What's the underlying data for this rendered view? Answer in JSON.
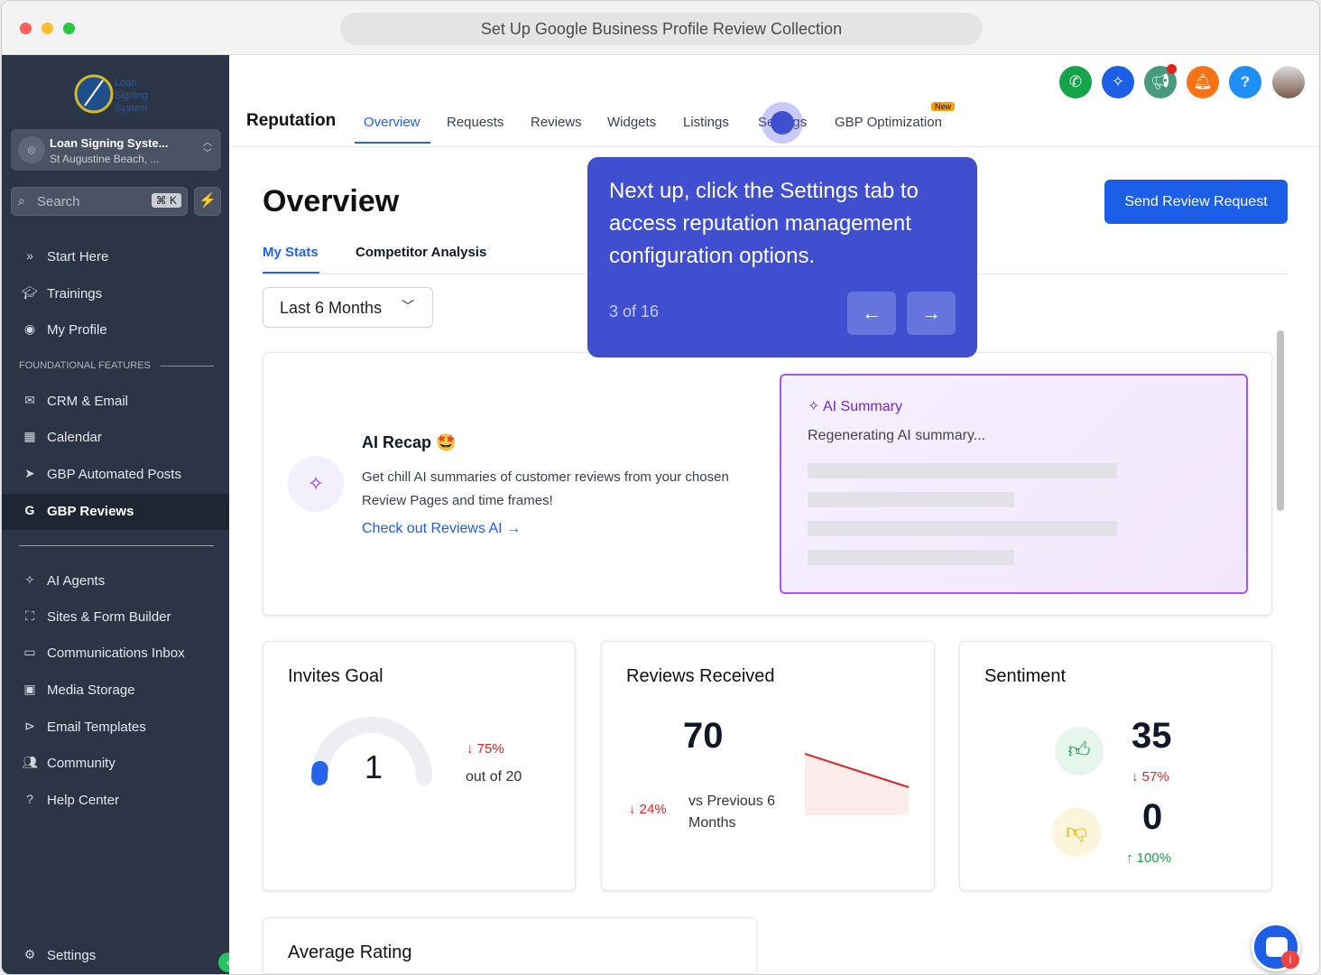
{
  "window": {
    "title": "Set Up Google Business Profile Review Collection"
  },
  "sidebar": {
    "logo_text": "Loan Signing System",
    "location": {
      "name": "Loan Signing Syste...",
      "address": "St Augustine Beach, ..."
    },
    "search": {
      "placeholder": "Search",
      "shortcut": "⌘ K"
    },
    "items_top": [
      {
        "label": "Start Here",
        "icon": "chevrons-right-icon"
      },
      {
        "label": "Trainings",
        "icon": "graduation-cap-icon"
      },
      {
        "label": "My Profile",
        "icon": "user-circle-icon"
      }
    ],
    "section_label": "FOUNDATIONAL FEATURES",
    "items_foundational": [
      {
        "label": "CRM & Email",
        "icon": "envelope-icon"
      },
      {
        "label": "Calendar",
        "icon": "calendar-icon"
      },
      {
        "label": "GBP Automated Posts",
        "icon": "send-icon"
      },
      {
        "label": "GBP Reviews",
        "icon": "google-icon",
        "active": true
      }
    ],
    "items_more": [
      {
        "label": "AI Agents",
        "icon": "sparkles-icon"
      },
      {
        "label": "Sites & Form Builder",
        "icon": "sitemap-icon"
      },
      {
        "label": "Communications Inbox",
        "icon": "inbox-icon"
      },
      {
        "label": "Media Storage",
        "icon": "image-icon"
      },
      {
        "label": "Email Templates",
        "icon": "play-circle-icon"
      },
      {
        "label": "Community",
        "icon": "users-icon"
      },
      {
        "label": "Help Center",
        "icon": "question-circle-icon"
      }
    ],
    "settings": "Settings"
  },
  "header": {
    "brand": "Reputation",
    "tabs": [
      {
        "label": "Overview",
        "active": true
      },
      {
        "label": "Requests"
      },
      {
        "label": "Reviews"
      },
      {
        "label": "Widgets"
      },
      {
        "label": "Listings"
      },
      {
        "label": "Settings"
      },
      {
        "label": "GBP Optimization",
        "badge": "New"
      }
    ],
    "icons": [
      {
        "name": "phone-icon",
        "color": "#16a34a"
      },
      {
        "name": "sparkles-icon",
        "color": "#1d5ee6"
      },
      {
        "name": "megaphone-icon",
        "color": "#479a7c"
      },
      {
        "name": "bell-icon",
        "color": "#f97316"
      },
      {
        "name": "help-icon",
        "color": "#1e90f5"
      }
    ]
  },
  "page": {
    "title": "Overview",
    "send_button": "Send Review Request",
    "subtabs": [
      {
        "label": "My Stats",
        "active": true
      },
      {
        "label": "Competitor Analysis"
      }
    ],
    "range": "Last 6 Months"
  },
  "ai_recap": {
    "title": "AI Recap",
    "emoji": "🤩",
    "description": "Get chill AI summaries of customer reviews from your chosen Review Pages and time frames!",
    "link": "Check out Reviews AI →"
  },
  "ai_summary": {
    "title": "AI Summary",
    "status": "Regenerating AI summary..."
  },
  "invites_goal": {
    "title": "Invites Goal",
    "value": "1",
    "goal_fraction": 0.05,
    "change": "↓ 75%",
    "out_of": "out of 20"
  },
  "reviews_received": {
    "title": "Reviews Received",
    "value": "70",
    "change": "↓ 24%",
    "comparison": "vs Previous 6 Months"
  },
  "sentiment": {
    "title": "Sentiment",
    "positive": "35",
    "positive_change": "↓ 57%",
    "negative": "0",
    "negative_change": "↑ 100%"
  },
  "average_rating": {
    "title": "Average Rating"
  },
  "tour": {
    "text": "Next up, click the Settings tab to access reputation management configuration options.",
    "progress": "3 of 16",
    "prev": "←",
    "next": "→"
  }
}
